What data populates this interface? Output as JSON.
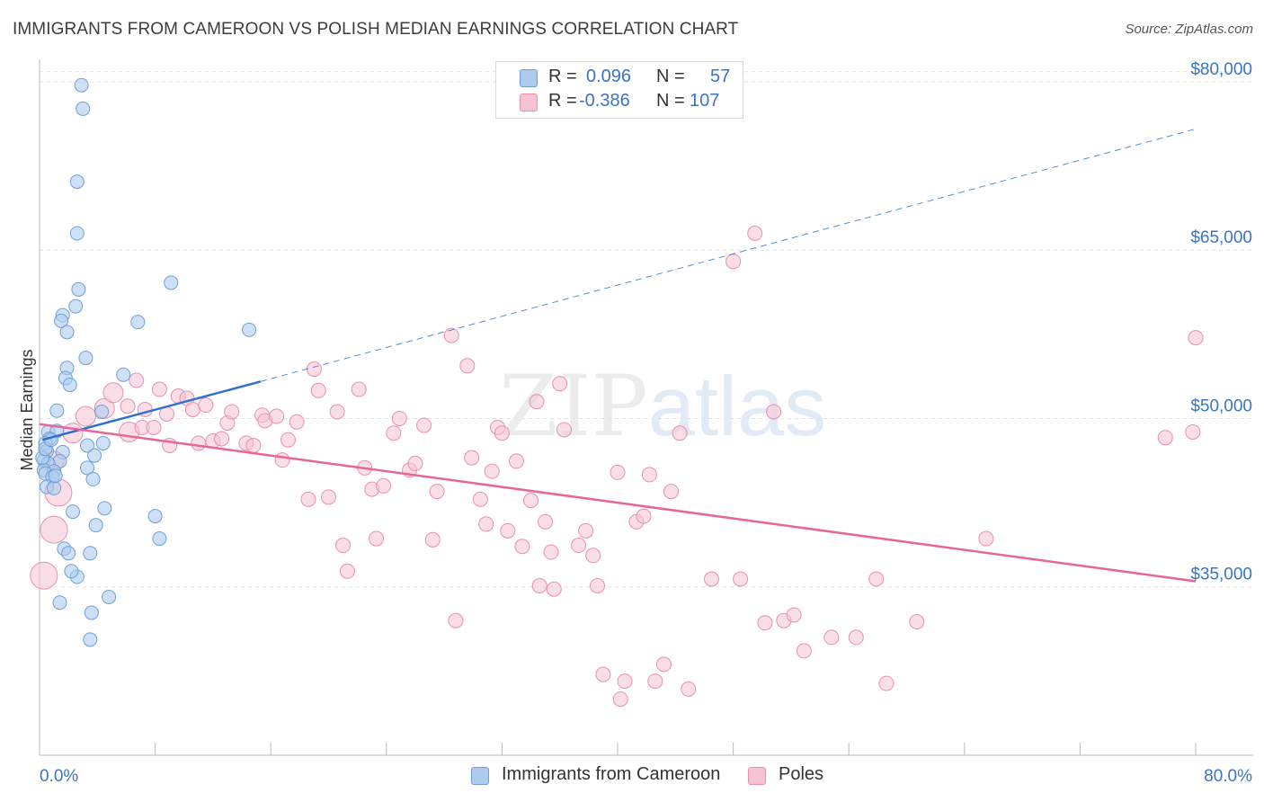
{
  "title": "IMMIGRANTS FROM CAMEROON VS POLISH MEDIAN EARNINGS CORRELATION CHART",
  "source": "Source: ZipAtlas.com",
  "watermark": {
    "a": "ZIP",
    "b": "atlas"
  },
  "legend": {
    "rows": [
      {
        "r_label": "R =",
        "r_value": "0.096",
        "n_label": "N =",
        "n_value": "57"
      },
      {
        "r_label": "R =",
        "r_value": "-0.386",
        "n_label": "N =",
        "n_value": "107"
      }
    ]
  },
  "bottom_legend": [
    "Immigrants from Cameroon",
    "Poles"
  ],
  "colors": {
    "blue_fill": "#aecbee",
    "blue_stroke": "#6f9fd8",
    "blue_line": "#2f6fd0",
    "pink_fill": "#f6c3d3",
    "pink_stroke": "#e890ad",
    "pink_line": "#e8659a",
    "axis_text": "#3a74c4"
  },
  "chart_data": {
    "type": "scatter",
    "title": "IMMIGRANTS FROM CAMEROON VS POLISH MEDIAN EARNINGS CORRELATION CHART",
    "xlabel": "",
    "ylabel": "Median Earnings",
    "xlim": [
      0,
      80
    ],
    "ylim": [
      20000,
      82000
    ],
    "x_tick_labels": [
      "0.0%",
      "80.0%"
    ],
    "y_ticks": [
      35000,
      50000,
      65000,
      80000
    ],
    "y_tick_labels": [
      "$35,000",
      "$50,000",
      "$65,000",
      "$80,000"
    ],
    "grid": true,
    "series": [
      {
        "name": "Immigrants from Cameroon",
        "color": "#aecbee",
        "points": [
          [
            2.9,
            79.7
          ],
          [
            3.0,
            77.6
          ],
          [
            2.6,
            71.1
          ],
          [
            2.6,
            66.5
          ],
          [
            2.7,
            61.5
          ],
          [
            9.1,
            62.1
          ],
          [
            2.5,
            60.0
          ],
          [
            1.6,
            59.2
          ],
          [
            1.5,
            58.7
          ],
          [
            6.8,
            58.6
          ],
          [
            14.5,
            57.9
          ],
          [
            1.9,
            57.7
          ],
          [
            3.2,
            55.4
          ],
          [
            1.9,
            54.5
          ],
          [
            5.8,
            53.9
          ],
          [
            1.8,
            53.6
          ],
          [
            2.1,
            53.0
          ],
          [
            1.2,
            50.7
          ],
          [
            4.3,
            50.6
          ],
          [
            0.6,
            48.8
          ],
          [
            1.2,
            48.9
          ],
          [
            0.7,
            48.2
          ],
          [
            0.4,
            47.8
          ],
          [
            4.4,
            47.8
          ],
          [
            3.3,
            47.6
          ],
          [
            0.5,
            47.1
          ],
          [
            1.6,
            47.0
          ],
          [
            3.8,
            46.7
          ],
          [
            0.3,
            46.3
          ],
          [
            1.4,
            46.2
          ],
          [
            0.6,
            46.0
          ],
          [
            0.3,
            45.4
          ],
          [
            1.0,
            45.3
          ],
          [
            3.3,
            45.6
          ],
          [
            0.4,
            45.1
          ],
          [
            0.9,
            44.8
          ],
          [
            3.7,
            44.6
          ],
          [
            0.5,
            43.9
          ],
          [
            1.0,
            43.8
          ],
          [
            4.5,
            42.0
          ],
          [
            2.3,
            41.7
          ],
          [
            8.0,
            41.3
          ],
          [
            3.9,
            40.5
          ],
          [
            8.3,
            39.3
          ],
          [
            1.7,
            38.4
          ],
          [
            2.0,
            38.0
          ],
          [
            3.5,
            38.0
          ],
          [
            2.6,
            35.9
          ],
          [
            4.8,
            34.1
          ],
          [
            1.4,
            33.6
          ],
          [
            3.6,
            32.7
          ],
          [
            3.5,
            30.3
          ],
          [
            0.2,
            46.5
          ],
          [
            0.4,
            47.3
          ],
          [
            0.8,
            48.1
          ],
          [
            1.1,
            44.9
          ],
          [
            2.2,
            36.4
          ]
        ],
        "trend": {
          "x0": 0.2,
          "y0": 48.1,
          "x1": 15.3,
          "y1": 53.3,
          "dashed_to_x": 80,
          "dashed_to_y": 75.8
        }
      },
      {
        "name": "Poles",
        "color": "#f6c3d3",
        "points": [
          [
            0.3,
            36.0
          ],
          [
            1.0,
            40.1
          ],
          [
            1.3,
            43.4
          ],
          [
            1.0,
            46.2
          ],
          [
            2.3,
            48.7
          ],
          [
            3.2,
            50.2
          ],
          [
            4.5,
            50.9
          ],
          [
            5.1,
            52.3
          ],
          [
            6.2,
            48.8
          ],
          [
            6.7,
            53.4
          ],
          [
            6.1,
            51.1
          ],
          [
            7.1,
            49.2
          ],
          [
            7.3,
            50.8
          ],
          [
            7.9,
            49.2
          ],
          [
            8.3,
            52.6
          ],
          [
            8.8,
            50.4
          ],
          [
            9.0,
            47.6
          ],
          [
            9.6,
            52.0
          ],
          [
            10.2,
            51.8
          ],
          [
            10.6,
            50.8
          ],
          [
            11.0,
            47.8
          ],
          [
            11.5,
            51.2
          ],
          [
            12.0,
            48.0
          ],
          [
            12.6,
            48.2
          ],
          [
            13.0,
            49.6
          ],
          [
            13.3,
            50.6
          ],
          [
            14.3,
            47.8
          ],
          [
            14.8,
            47.6
          ],
          [
            15.4,
            50.3
          ],
          [
            15.6,
            49.8
          ],
          [
            16.4,
            50.2
          ],
          [
            16.8,
            46.3
          ],
          [
            17.2,
            48.1
          ],
          [
            17.8,
            49.7
          ],
          [
            18.6,
            42.8
          ],
          [
            19.0,
            54.4
          ],
          [
            19.3,
            52.5
          ],
          [
            20.0,
            43.0
          ],
          [
            20.6,
            50.6
          ],
          [
            21.0,
            38.7
          ],
          [
            21.3,
            36.4
          ],
          [
            22.1,
            52.6
          ],
          [
            22.5,
            45.6
          ],
          [
            23.0,
            43.7
          ],
          [
            23.3,
            39.3
          ],
          [
            23.8,
            44.0
          ],
          [
            24.5,
            48.7
          ],
          [
            24.9,
            50.0
          ],
          [
            25.6,
            45.4
          ],
          [
            26.0,
            46.0
          ],
          [
            26.6,
            49.4
          ],
          [
            27.2,
            39.2
          ],
          [
            27.5,
            43.5
          ],
          [
            28.5,
            57.4
          ],
          [
            28.8,
            32.0
          ],
          [
            29.6,
            54.7
          ],
          [
            29.9,
            46.5
          ],
          [
            30.5,
            42.8
          ],
          [
            30.9,
            40.6
          ],
          [
            31.3,
            45.3
          ],
          [
            31.7,
            49.2
          ],
          [
            32.0,
            48.7
          ],
          [
            32.4,
            40.0
          ],
          [
            33.0,
            46.2
          ],
          [
            33.4,
            38.6
          ],
          [
            34.0,
            42.7
          ],
          [
            34.4,
            51.5
          ],
          [
            34.6,
            35.1
          ],
          [
            35.0,
            40.8
          ],
          [
            35.4,
            38.1
          ],
          [
            35.6,
            34.8
          ],
          [
            36.0,
            53.1
          ],
          [
            36.3,
            49.0
          ],
          [
            37.3,
            38.7
          ],
          [
            37.8,
            40.0
          ],
          [
            38.3,
            37.8
          ],
          [
            38.6,
            35.1
          ],
          [
            39.0,
            27.2
          ],
          [
            40.0,
            45.2
          ],
          [
            40.2,
            25.0
          ],
          [
            40.5,
            26.6
          ],
          [
            41.3,
            40.8
          ],
          [
            41.8,
            41.3
          ],
          [
            42.2,
            45.0
          ],
          [
            42.6,
            26.6
          ],
          [
            43.2,
            28.1
          ],
          [
            43.7,
            43.5
          ],
          [
            44.3,
            48.7
          ],
          [
            44.9,
            25.9
          ],
          [
            46.5,
            35.7
          ],
          [
            48.0,
            64.0
          ],
          [
            48.5,
            35.7
          ],
          [
            49.5,
            66.5
          ],
          [
            50.2,
            31.8
          ],
          [
            50.8,
            50.6
          ],
          [
            51.5,
            32.0
          ],
          [
            52.2,
            32.5
          ],
          [
            52.9,
            29.3
          ],
          [
            54.8,
            30.5
          ],
          [
            56.5,
            30.5
          ],
          [
            57.9,
            35.7
          ],
          [
            58.6,
            26.4
          ],
          [
            60.7,
            31.9
          ],
          [
            65.5,
            39.3
          ],
          [
            77.9,
            48.3
          ],
          [
            79.8,
            48.8
          ],
          [
            80.0,
            57.2
          ]
        ],
        "trend": {
          "x0": 0,
          "y0": 49.5,
          "x1": 80,
          "y1": 35.5
        }
      }
    ]
  }
}
